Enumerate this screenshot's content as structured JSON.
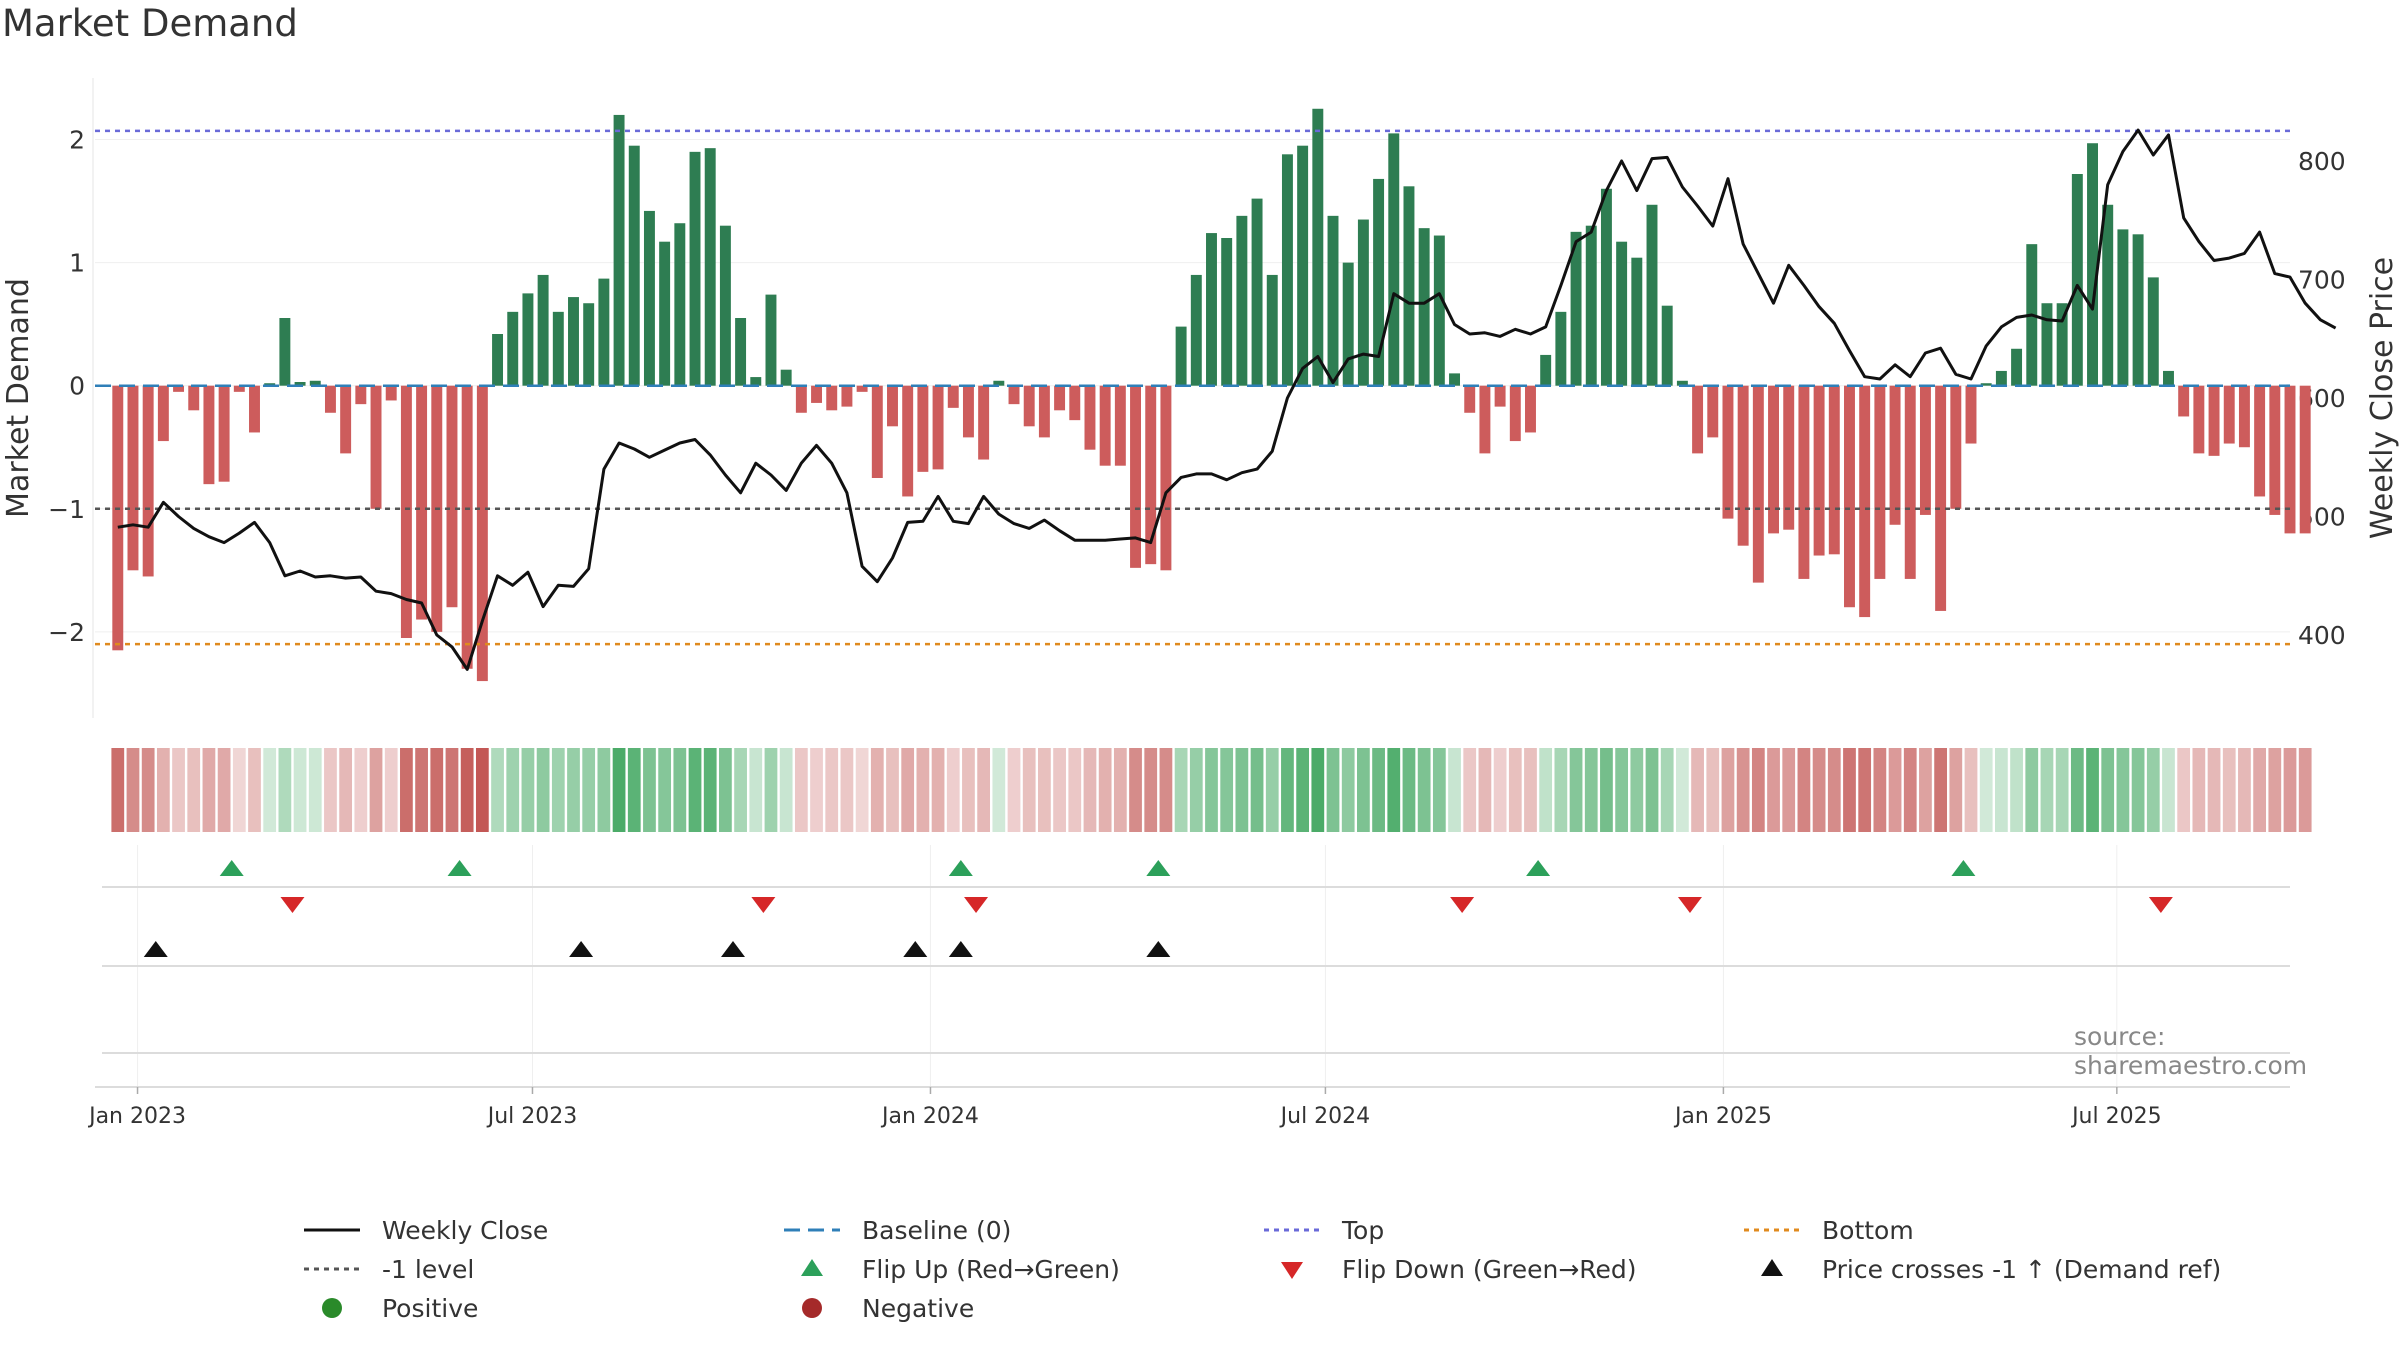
{
  "title": "Market Demand",
  "source": "source: sharemaestro.com",
  "colors": {
    "positive": "#2e7d52",
    "negative": "#cd5c5c",
    "price": "#111111",
    "top": "#6a6ad8",
    "bottom": "#e08a1e",
    "minus1": "#555555",
    "baseline": "#2f7fb8",
    "flip_up": "#2ca05a",
    "flip_down": "#d62728",
    "cross": "#111111"
  },
  "chart_data": {
    "type": "bar",
    "title": "Market Demand",
    "ylabel": "Market Demand",
    "y2label": "Weekly Close Price",
    "ylim": [
      -2.7,
      2.5
    ],
    "y2lim": [
      330,
      870
    ],
    "yticks": [
      2,
      1,
      0,
      -1,
      -2
    ],
    "y2ticks": [
      800,
      700,
      600,
      500,
      400
    ],
    "top_level": 2.07,
    "bottom_level": -2.1,
    "minus1_level": -1,
    "xlim_weeks": [
      -1.5,
      143
    ],
    "xticks": [
      {
        "label": "Jan 2023",
        "week": 1.3
      },
      {
        "label": "Jul 2023",
        "week": 27.3
      },
      {
        "label": "Jan 2024",
        "week": 53.5
      },
      {
        "label": "Jul 2024",
        "week": 79.5
      },
      {
        "label": "Jan 2025",
        "week": 105.7
      },
      {
        "label": "Jul 2025",
        "week": 131.6
      }
    ],
    "demand": [
      -2.15,
      -1.5,
      -1.55,
      -0.45,
      -0.05,
      -0.2,
      -0.8,
      -0.78,
      -0.05,
      -0.38,
      0.02,
      0.55,
      0.03,
      0.04,
      -0.22,
      -0.55,
      -0.15,
      -1.0,
      -0.12,
      -2.05,
      -1.9,
      -2.0,
      -1.8,
      -2.3,
      -2.4,
      0.42,
      0.6,
      0.75,
      0.9,
      0.6,
      0.72,
      0.67,
      0.87,
      2.2,
      1.95,
      1.42,
      1.17,
      1.32,
      1.9,
      1.93,
      1.3,
      0.55,
      0.07,
      0.74,
      0.13,
      -0.22,
      -0.14,
      -0.2,
      -0.17,
      -0.05,
      -0.75,
      -0.33,
      -0.9,
      -0.7,
      -0.68,
      -0.18,
      -0.42,
      -0.6,
      0.04,
      -0.15,
      -0.33,
      -0.42,
      -0.2,
      -0.28,
      -0.52,
      -0.65,
      -0.65,
      -1.48,
      -1.45,
      -1.5,
      0.48,
      0.9,
      1.24,
      1.2,
      1.38,
      1.52,
      0.9,
      1.88,
      1.95,
      2.25,
      1.38,
      1.0,
      1.35,
      1.68,
      2.05,
      1.62,
      1.28,
      1.22,
      0.1,
      -0.22,
      -0.55,
      -0.17,
      -0.45,
      -0.38,
      0.25,
      0.6,
      1.25,
      1.3,
      1.6,
      1.17,
      1.04,
      1.47,
      0.65,
      0.04,
      -0.55,
      -0.42,
      -1.08,
      -1.3,
      -1.6,
      -1.2,
      -1.17,
      -1.57,
      -1.38,
      -1.37,
      -1.8,
      -1.88,
      -1.57,
      -1.13,
      -1.57,
      -1.05,
      -1.83,
      -1.0,
      -0.47,
      0.02,
      0.12,
      0.3,
      1.15,
      0.67,
      0.67,
      1.72,
      1.97,
      1.47,
      1.27,
      1.23,
      0.88,
      0.12,
      -0.25,
      -0.55,
      -0.57,
      -0.47,
      -0.5,
      -0.9,
      -1.05,
      -1.2,
      -1.2
    ],
    "price": [
      [
        0,
        491
      ],
      [
        1,
        493
      ],
      [
        2,
        491
      ],
      [
        3,
        512
      ],
      [
        4,
        500
      ],
      [
        5,
        490
      ],
      [
        6,
        483
      ],
      [
        7,
        478
      ],
      [
        8,
        486
      ],
      [
        9,
        495
      ],
      [
        10,
        478
      ],
      [
        11,
        450
      ],
      [
        12,
        454
      ],
      [
        13,
        449
      ],
      [
        14,
        450
      ],
      [
        15,
        448
      ],
      [
        16,
        449
      ],
      [
        17,
        437
      ],
      [
        18,
        435
      ],
      [
        19,
        430
      ],
      [
        20,
        427
      ],
      [
        21,
        400
      ],
      [
        22,
        390
      ],
      [
        23,
        371
      ],
      [
        24,
        412
      ],
      [
        25,
        450
      ],
      [
        26,
        442
      ],
      [
        27,
        453
      ],
      [
        28,
        424
      ],
      [
        29,
        442
      ],
      [
        30,
        441
      ],
      [
        31,
        456
      ],
      [
        32,
        540
      ],
      [
        33,
        562
      ],
      [
        34,
        557
      ],
      [
        35,
        550
      ],
      [
        36,
        556
      ],
      [
        37,
        562
      ],
      [
        38,
        565
      ],
      [
        39,
        552
      ],
      [
        40,
        535
      ],
      [
        41,
        520
      ],
      [
        42,
        545
      ],
      [
        43,
        535
      ],
      [
        44,
        522
      ],
      [
        45,
        545
      ],
      [
        46,
        560
      ],
      [
        47,
        545
      ],
      [
        48,
        520
      ],
      [
        49,
        458
      ],
      [
        50,
        445
      ],
      [
        51,
        465
      ],
      [
        52,
        495
      ],
      [
        53,
        496
      ],
      [
        54,
        517
      ],
      [
        55,
        496
      ],
      [
        56,
        494
      ],
      [
        57,
        517
      ],
      [
        58,
        502
      ],
      [
        59,
        494
      ],
      [
        60,
        490
      ],
      [
        61,
        497
      ],
      [
        62,
        488
      ],
      [
        63,
        480
      ],
      [
        64,
        480
      ],
      [
        65,
        480
      ],
      [
        66,
        481
      ],
      [
        67,
        482
      ],
      [
        68,
        478
      ],
      [
        69,
        520
      ],
      [
        70,
        533
      ],
      [
        71,
        536
      ],
      [
        72,
        536
      ],
      [
        73,
        531
      ],
      [
        74,
        537
      ],
      [
        75,
        540
      ],
      [
        76,
        555
      ],
      [
        77,
        600
      ],
      [
        78,
        625
      ],
      [
        79,
        635
      ],
      [
        80,
        613
      ],
      [
        81,
        633
      ],
      [
        82,
        637
      ],
      [
        83,
        635
      ],
      [
        84,
        688
      ],
      [
        85,
        680
      ],
      [
        86,
        680
      ],
      [
        87,
        688
      ],
      [
        88,
        662
      ],
      [
        89,
        654
      ],
      [
        90,
        655
      ],
      [
        91,
        652
      ],
      [
        92,
        658
      ],
      [
        93,
        654
      ],
      [
        94,
        660
      ],
      [
        95,
        695
      ],
      [
        96,
        732
      ],
      [
        97,
        740
      ],
      [
        98,
        775
      ],
      [
        99,
        800
      ],
      [
        100,
        775
      ],
      [
        101,
        802
      ],
      [
        102,
        803
      ],
      [
        103,
        778
      ],
      [
        104,
        762
      ],
      [
        105,
        745
      ],
      [
        106,
        785
      ],
      [
        107,
        730
      ],
      [
        108,
        705
      ],
      [
        109,
        680
      ],
      [
        110,
        712
      ],
      [
        111,
        695
      ],
      [
        112,
        677
      ],
      [
        113,
        663
      ],
      [
        114,
        640
      ],
      [
        115,
        618
      ],
      [
        116,
        616
      ],
      [
        117,
        628
      ],
      [
        118,
        618
      ],
      [
        119,
        638
      ],
      [
        120,
        642
      ],
      [
        121,
        620
      ],
      [
        122,
        616
      ],
      [
        123,
        644
      ],
      [
        124,
        660
      ],
      [
        125,
        668
      ],
      [
        126,
        670
      ],
      [
        127,
        666
      ],
      [
        128,
        665
      ],
      [
        129,
        695
      ],
      [
        130,
        675
      ],
      [
        131,
        780
      ],
      [
        132,
        808
      ],
      [
        133,
        826
      ],
      [
        134,
        805
      ],
      [
        135,
        822
      ],
      [
        136,
        752
      ],
      [
        137,
        732
      ],
      [
        138,
        716
      ],
      [
        139,
        718
      ],
      [
        140,
        722
      ],
      [
        141,
        740
      ],
      [
        142,
        705
      ],
      [
        143,
        702
      ],
      [
        144,
        680
      ],
      [
        145,
        666
      ],
      [
        146,
        659
      ]
    ],
    "flip_up_weeks": [
      7.5,
      22.5,
      55.5,
      68.5,
      93.5,
      121.5
    ],
    "flip_down_weeks": [
      11.5,
      42.5,
      56.5,
      88.5,
      103.5,
      134.5
    ],
    "cross_weeks": [
      2.5,
      30.5,
      40.5,
      52.5,
      55.5,
      68.5
    ],
    "heat_intensity": [
      0.8,
      0.6,
      0.6,
      0.35,
      0.2,
      0.25,
      0.4,
      0.4,
      0.1,
      0.25,
      0.1,
      0.3,
      0.12,
      0.12,
      0.2,
      0.3,
      0.15,
      0.45,
      0.15,
      0.8,
      0.75,
      0.8,
      0.75,
      0.9,
      0.95,
      0.3,
      0.4,
      0.45,
      0.5,
      0.4,
      0.45,
      0.45,
      0.5,
      0.9,
      0.8,
      0.6,
      0.55,
      0.6,
      0.8,
      0.8,
      0.6,
      0.35,
      0.15,
      0.4,
      0.15,
      0.2,
      0.15,
      0.2,
      0.2,
      0.1,
      0.35,
      0.25,
      0.4,
      0.35,
      0.35,
      0.15,
      0.25,
      0.3,
      0.1,
      0.15,
      0.25,
      0.25,
      0.2,
      0.2,
      0.3,
      0.35,
      0.35,
      0.6,
      0.6,
      0.6,
      0.35,
      0.45,
      0.55,
      0.55,
      0.6,
      0.65,
      0.45,
      0.75,
      0.8,
      0.9,
      0.6,
      0.5,
      0.6,
      0.7,
      0.85,
      0.7,
      0.6,
      0.55,
      0.15,
      0.2,
      0.3,
      0.15,
      0.25,
      0.25,
      0.2,
      0.35,
      0.55,
      0.55,
      0.65,
      0.55,
      0.5,
      0.6,
      0.35,
      0.1,
      0.3,
      0.25,
      0.45,
      0.55,
      0.65,
      0.5,
      0.5,
      0.65,
      0.6,
      0.6,
      0.75,
      0.75,
      0.65,
      0.5,
      0.65,
      0.45,
      0.75,
      0.45,
      0.25,
      0.1,
      0.15,
      0.2,
      0.5,
      0.35,
      0.35,
      0.7,
      0.8,
      0.6,
      0.55,
      0.55,
      0.45,
      0.15,
      0.2,
      0.3,
      0.3,
      0.25,
      0.3,
      0.4,
      0.45,
      0.5,
      0.5
    ]
  },
  "legend": {
    "weekly_close": "Weekly Close",
    "baseline": "Baseline (0)",
    "top": "Top",
    "bottom": "Bottom",
    "minus1": "-1 level",
    "flip_up": "Flip Up (Red→Green)",
    "flip_down": "Flip Down (Green→Red)",
    "cross": "Price crosses -1 ↑ (Demand ref)",
    "positive": "Positive",
    "negative": "Negative"
  }
}
